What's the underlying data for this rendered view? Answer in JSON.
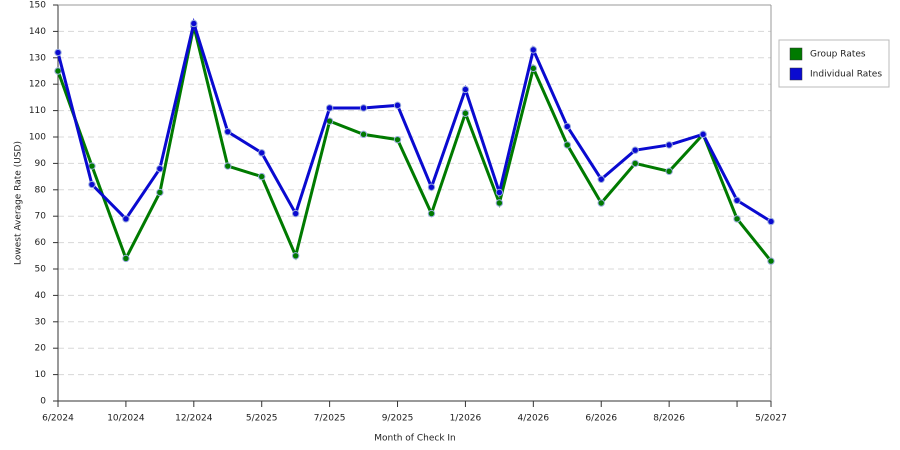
{
  "chart_data": {
    "type": "line",
    "x_label": "Month of Check In",
    "y_label": "Lowest Average Rate (USD)",
    "categories": [
      "6/2024",
      null,
      "10/2024",
      null,
      "12/2024",
      null,
      "5/2025",
      null,
      "7/2025",
      null,
      "9/2025",
      null,
      "1/2026",
      null,
      "4/2026",
      null,
      "6/2026",
      null,
      "8/2026",
      null,
      null,
      "5/2027"
    ],
    "series": [
      {
        "name": "Group Rates",
        "color": "#007a00",
        "values": [
          125,
          89,
          54,
          79,
          142,
          89,
          85,
          55,
          106,
          101,
          99,
          71,
          109,
          75,
          126,
          97,
          75,
          90,
          87,
          101,
          69,
          53
        ]
      },
      {
        "name": "Individual Rates",
        "color": "#0a0ad0",
        "values": [
          132,
          82,
          69,
          88,
          143,
          102,
          94,
          71,
          111,
          111,
          112,
          81,
          118,
          79,
          133,
          104,
          84,
          95,
          97,
          101,
          76,
          68
        ]
      }
    ],
    "ylim": [
      0,
      150
    ],
    "yticks": [
      0,
      10,
      20,
      30,
      40,
      50,
      60,
      70,
      80,
      90,
      100,
      110,
      120,
      130,
      140,
      150
    ],
    "grid": true,
    "legend": "right"
  }
}
